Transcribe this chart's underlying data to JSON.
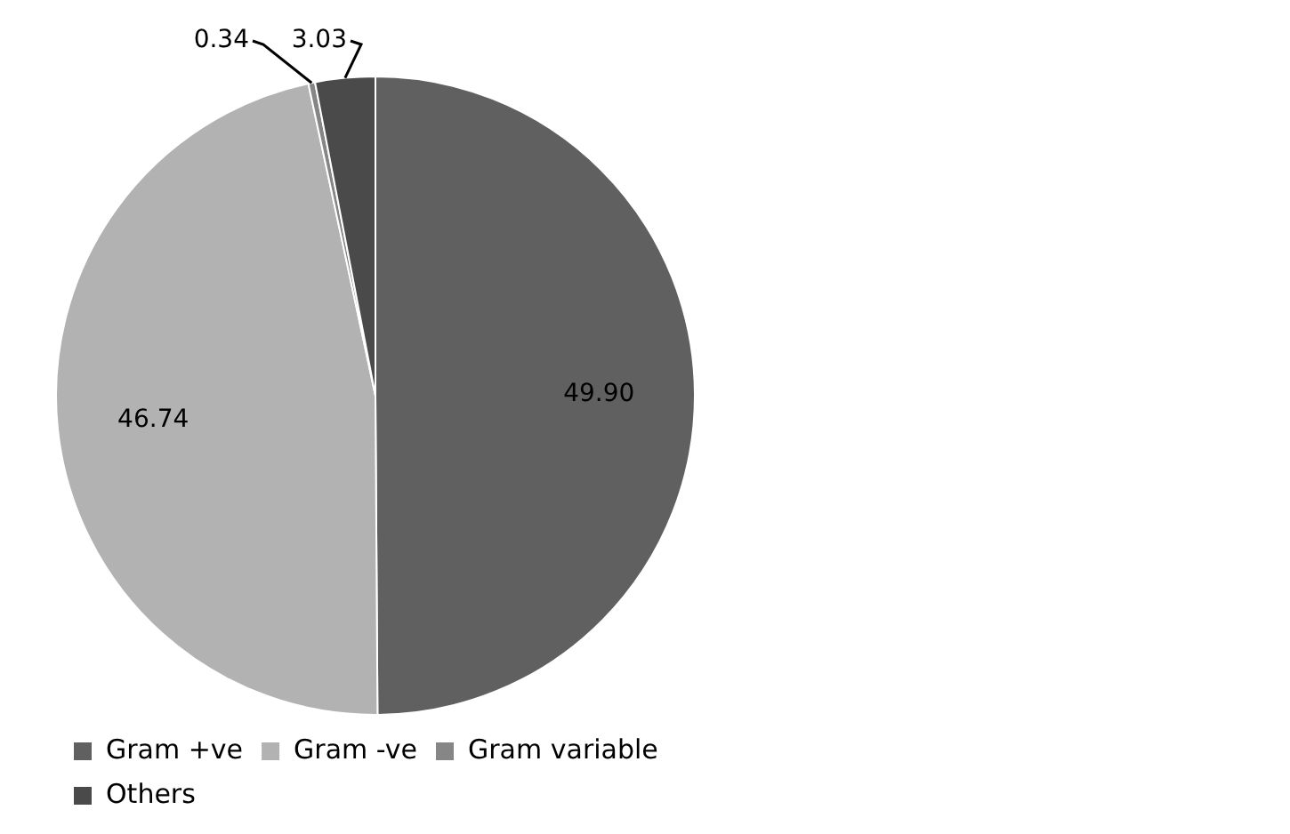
{
  "chart_data": {
    "type": "pie",
    "categories": [
      "Gram +ve",
      "Gram -ve",
      "Gram variable",
      "Others"
    ],
    "values": [
      49.9,
      46.74,
      0.34,
      3.03
    ],
    "value_labels": [
      "49.90",
      "46.74",
      "0.34",
      "3.03"
    ],
    "colors": [
      "#606060",
      "#b2b2b2",
      "#868686",
      "#4a4a4a"
    ],
    "legend": "bottom"
  }
}
